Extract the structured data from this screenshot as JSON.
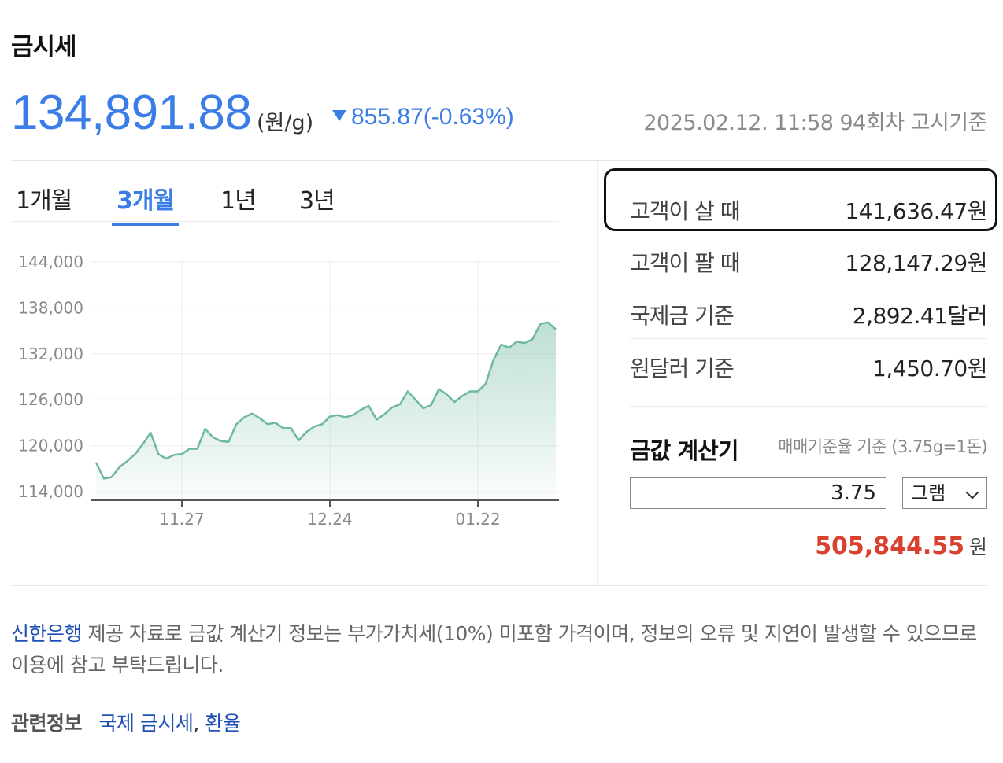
{
  "title": "금시세",
  "price": {
    "value": "134,891.88",
    "unit": "(원/g)",
    "change": "855.87(-0.63%)",
    "direction": "down",
    "notice": "2025.02.12. 11:58 94회차 고시기준"
  },
  "tabs": [
    {
      "label": "1개월",
      "active": false
    },
    {
      "label": "3개월",
      "active": true
    },
    {
      "label": "1년",
      "active": false
    },
    {
      "label": "3년",
      "active": false
    }
  ],
  "info": [
    {
      "label": "고객이 살 때",
      "value": "141,636.47원"
    },
    {
      "label": "고객이 팔 때",
      "value": "128,147.29원"
    },
    {
      "label": "국제금 기준",
      "value": "2,892.41달러"
    },
    {
      "label": "원달러 기준",
      "value": "1,450.70원"
    }
  ],
  "calculator": {
    "title": "금값 계산기",
    "note": "매매기준율 기준 (3.75g=1돈)",
    "amount": "3.75",
    "unit_selected": "그램",
    "result": "505,844.55",
    "result_unit": "원"
  },
  "disclaimer": {
    "bank": "신한은행",
    "text": " 제공 자료로 금값 계산기 정보는 부가가치세(10%) 미포함 가격이며, 정보의 오류 및 지연이 발생할 수 있으므로 이용에 참고 부탁드립니다."
  },
  "related": {
    "label": "관련정보",
    "link1": "국제 금시세",
    "separator": ",",
    "link2": "환율"
  },
  "colors": {
    "accent": "#3b7de8",
    "line": "#6fb8a0",
    "result": "#d8402f",
    "link": "#1f4fb5"
  },
  "chart_data": {
    "type": "area",
    "ylim": [
      112000,
      146000
    ],
    "yticks": [
      "144,000",
      "138,000",
      "132,000",
      "126,000",
      "120,000",
      "114,000"
    ],
    "ytick_values": [
      144000,
      138000,
      132000,
      126000,
      120000,
      114000
    ],
    "xticks": [
      "11.27",
      "12.24",
      "01.22"
    ],
    "xtick_index": [
      11,
      30,
      49
    ],
    "values": [
      117800,
      115700,
      115900,
      117200,
      118000,
      118900,
      120200,
      121700,
      118900,
      118300,
      118800,
      118900,
      119600,
      119600,
      122200,
      121100,
      120600,
      120500,
      122800,
      123700,
      124200,
      123600,
      122800,
      123000,
      122300,
      122300,
      120700,
      121800,
      122500,
      122800,
      123800,
      124000,
      123700,
      124000,
      124700,
      125200,
      123400,
      124100,
      125000,
      125400,
      127100,
      126000,
      124900,
      125300,
      127400,
      126700,
      125700,
      126500,
      127100,
      127100,
      128100,
      131200,
      133200,
      132800,
      133600,
      133400,
      133900,
      135900,
      136100,
      135200
    ]
  }
}
